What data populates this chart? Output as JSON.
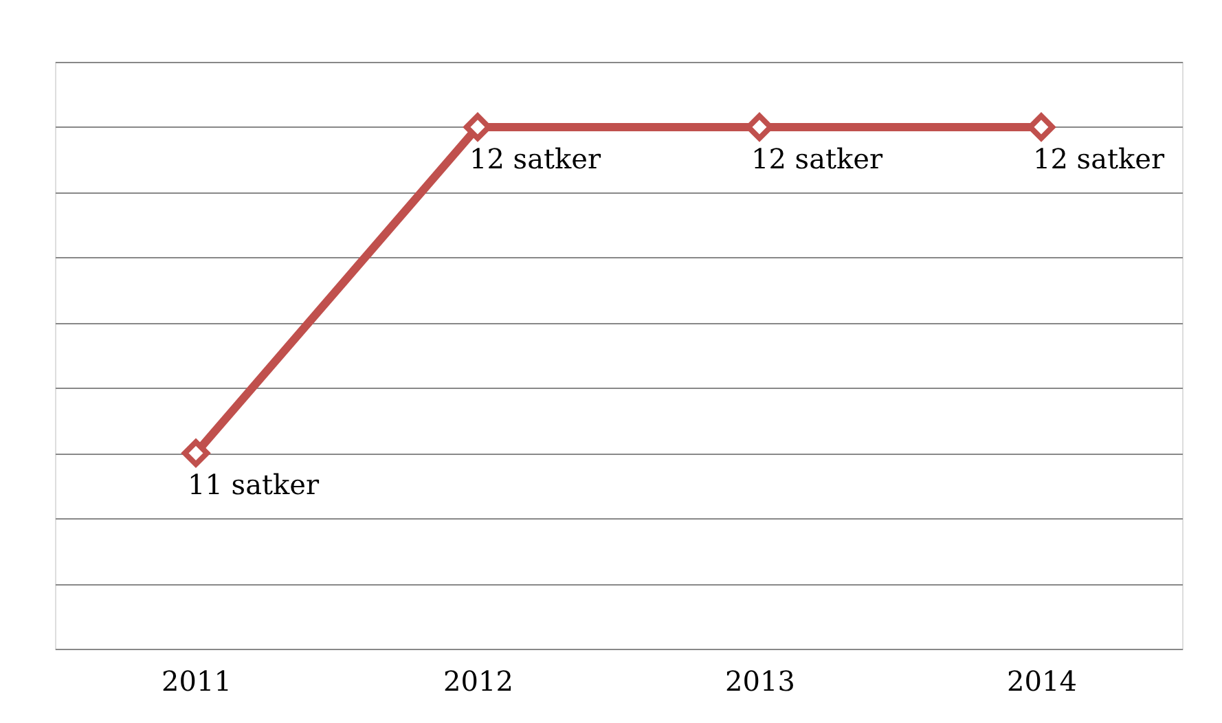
{
  "chart_data": {
    "type": "line",
    "categories": [
      "2011",
      "2012",
      "2013",
      "2014"
    ],
    "series": [
      {
        "color": "#c0504d",
        "values": [
          11,
          12,
          12,
          12
        ],
        "value_labels": [
          "11 satker",
          "12 satker",
          "12 satker",
          "12 satker"
        ]
      }
    ],
    "ylim": [
      10.4,
      12.2
    ],
    "yticks": [
      {
        "value": 10.4,
        "label": null
      },
      {
        "value": 10.6,
        "label": null
      },
      {
        "value": 10.8,
        "label": null
      },
      {
        "value": 11.0,
        "label": null
      },
      {
        "value": 11.2,
        "label": null
      },
      {
        "value": 11.4,
        "label": null
      },
      {
        "value": 11.6,
        "label": null
      },
      {
        "value": 11.8,
        "label": null
      },
      {
        "value": 12.0,
        "label": null
      },
      {
        "value": 12.2,
        "label": null
      }
    ],
    "tick_labels": "x",
    "grid": "y",
    "marker": "diamond",
    "line_style": "solid"
  }
}
